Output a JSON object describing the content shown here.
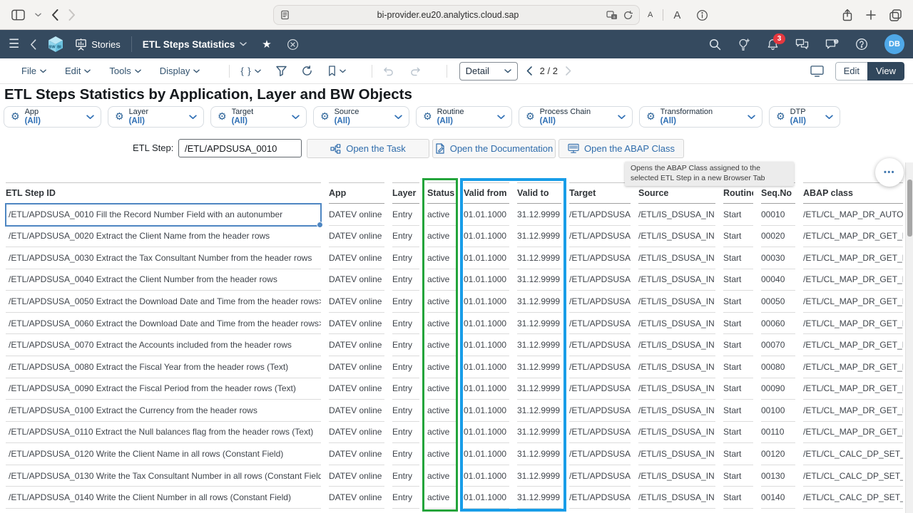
{
  "browser": {
    "url": "bi-provider.eu20.analytics.cloud.sap",
    "text_size_small": "A",
    "text_size_large": "A"
  },
  "icons": {
    "hamburger": "☰",
    "favorite_star": "★",
    "gear": "⚙",
    "widget_menu": "•••"
  },
  "shell": {
    "stories_label": "Stories",
    "story_title": "ETL Steps Statistics",
    "notification_count": "3",
    "avatar_initials": "DB"
  },
  "toolbar": {
    "menus": [
      "File",
      "Edit",
      "Tools",
      "Display"
    ],
    "script_glyph": "{ }",
    "view_mode_selected": "Detail",
    "page_indicator": "2 / 2",
    "edit_label": "Edit",
    "view_label": "View"
  },
  "page": {
    "title": "ETL Steps Statistics by Application, Layer and BW Objects"
  },
  "filters": [
    {
      "label": "App",
      "value": "(All)"
    },
    {
      "label": "Layer",
      "value": "(All)"
    },
    {
      "label": "Target",
      "value": "(All)"
    },
    {
      "label": "Source",
      "value": "(All)"
    },
    {
      "label": "Routine",
      "value": "(All)"
    },
    {
      "label": "Process Chain",
      "value": "(All)"
    },
    {
      "label": "Transformation",
      "value": "(All)"
    },
    {
      "label": "DTP",
      "value": "(All)"
    }
  ],
  "etl_step": {
    "label": "ETL Step:",
    "value": "/ETL/APDSUSA_0010",
    "buttons": [
      {
        "label": "Open the Task",
        "icon": "process-chain-icon"
      },
      {
        "label": "Open the Documentation",
        "icon": "document-icon"
      },
      {
        "label": "Open the ABAP Class",
        "icon": "terminal-icon"
      }
    ]
  },
  "tooltip": {
    "text": "Opens the ABAP Class assigned to the selected ETL Step in a new Browser Tab"
  },
  "highlights": {
    "status_box_color": "#23a43b",
    "validity_box_color": "#189de8"
  },
  "colors": {
    "shell_bg": "#354a5f",
    "accent_blue": "#2d6eb4",
    "selection_blue": "#4e86c2",
    "avatar_bg": "#4fa8e8",
    "badge_red": "#e5383f"
  },
  "table": {
    "columns": [
      "ETL Step ID",
      "App",
      "Layer",
      "Status",
      "Valid from",
      "Valid to",
      "Target",
      "Source",
      "Routine",
      "Seq.No",
      "ABAP class"
    ],
    "rows": [
      [
        "/ETL/APDSUSA_0010 Fill the Record Number Field with an autonumber",
        "DATEV online",
        "Entry",
        "active",
        "01.01.1000",
        "31.12.9999",
        "/ETL/APDSUSA",
        "/ETL/IS_DSUSA_IN",
        "Start",
        "00010",
        "/ETL/CL_MAP_DR_AUTONU"
      ],
      [
        "/ETL/APDSUSA_0020 Extract the Client Name from the header rows",
        "DATEV online",
        "Entry",
        "active",
        "01.01.1000",
        "31.12.9999",
        "/ETL/APDSUSA",
        "/ETL/IS_DSUSA_IN",
        "Start",
        "00020",
        "/ETL/CL_MAP_DR_GET_FIEL"
      ],
      [
        "/ETL/APDSUSA_0030 Extract the Tax Consultant Number from the header rows",
        "DATEV online",
        "Entry",
        "active",
        "01.01.1000",
        "31.12.9999",
        "/ETL/APDSUSA",
        "/ETL/IS_DSUSA_IN",
        "Start",
        "00030",
        "/ETL/CL_MAP_DR_GET_FIEL"
      ],
      [
        "/ETL/APDSUSA_0040 Extract the Client Number from the header rows",
        "DATEV online",
        "Entry",
        "active",
        "01.01.1000",
        "31.12.9999",
        "/ETL/APDSUSA",
        "/ETL/IS_DSUSA_IN",
        "Start",
        "00040",
        "/ETL/CL_MAP_DR_GET_FIEL"
      ],
      [
        "/ETL/APDSUSA_0050 Extract the Download Date and Time from the header rows>Date",
        "DATEV online",
        "Entry",
        "active",
        "01.01.1000",
        "31.12.9999",
        "/ETL/APDSUSA",
        "/ETL/IS_DSUSA_IN",
        "Start",
        "00050",
        "/ETL/CL_MAP_DR_GET_FIEL"
      ],
      [
        "/ETL/APDSUSA_0060 Extract the Download Date and Time from the header rows>Time",
        "DATEV online",
        "Entry",
        "active",
        "01.01.1000",
        "31.12.9999",
        "/ETL/APDSUSA",
        "/ETL/IS_DSUSA_IN",
        "Start",
        "00060",
        "/ETL/CL_MAP_DR_GET_FIEL"
      ],
      [
        "/ETL/APDSUSA_0070 Extract the Accounts included from the header rows",
        "DATEV online",
        "Entry",
        "active",
        "01.01.1000",
        "31.12.9999",
        "/ETL/APDSUSA",
        "/ETL/IS_DSUSA_IN",
        "Start",
        "00070",
        "/ETL/CL_MAP_DR_GET_FIEL"
      ],
      [
        "/ETL/APDSUSA_0080 Extract the Fiscal Year from the header rows (Text)",
        "DATEV online",
        "Entry",
        "active",
        "01.01.1000",
        "31.12.9999",
        "/ETL/APDSUSA",
        "/ETL/IS_DSUSA_IN",
        "Start",
        "00080",
        "/ETL/CL_MAP_DR_GET_FIEL"
      ],
      [
        "/ETL/APDSUSA_0090 Extract the Fiscal Period from the header rows (Text)",
        "DATEV online",
        "Entry",
        "active",
        "01.01.1000",
        "31.12.9999",
        "/ETL/APDSUSA",
        "/ETL/IS_DSUSA_IN",
        "Start",
        "00090",
        "/ETL/CL_MAP_DR_GET_FIEL"
      ],
      [
        "/ETL/APDSUSA_0100 Extract the Currency from the header rows",
        "DATEV online",
        "Entry",
        "active",
        "01.01.1000",
        "31.12.9999",
        "/ETL/APDSUSA",
        "/ETL/IS_DSUSA_IN",
        "Start",
        "00100",
        "/ETL/CL_MAP_DR_GET_FIEL"
      ],
      [
        "/ETL/APDSUSA_0110 Extract the Null balances flag from the header rows (Text)",
        "DATEV online",
        "Entry",
        "active",
        "01.01.1000",
        "31.12.9999",
        "/ETL/APDSUSA",
        "/ETL/IS_DSUSA_IN",
        "Start",
        "00110",
        "/ETL/CL_MAP_DR_GET_FIEL"
      ],
      [
        "/ETL/APDSUSA_0120 Write the Client Name in all rows (Constant Field)",
        "DATEV online",
        "Entry",
        "active",
        "01.01.1000",
        "31.12.9999",
        "/ETL/APDSUSA",
        "/ETL/IS_DSUSA_IN",
        "Start",
        "00120",
        "/ETL/CL_CALC_DP_SET_FIR"
      ],
      [
        "/ETL/APDSUSA_0130 Write the Tax Consultant Number in all rows (Constant Field)",
        "DATEV online",
        "Entry",
        "active",
        "01.01.1000",
        "31.12.9999",
        "/ETL/APDSUSA",
        "/ETL/IS_DSUSA_IN",
        "Start",
        "00130",
        "/ETL/CL_CALC_DP_SET_FIR"
      ],
      [
        "/ETL/APDSUSA_0140 Write the Client Number in all rows (Constant Field)",
        "DATEV online",
        "Entry",
        "active",
        "01.01.1000",
        "31.12.9999",
        "/ETL/APDSUSA",
        "/ETL/IS_DSUSA_IN",
        "Start",
        "00140",
        "/ETL/CL_CALC_DP_SET_FIR"
      ]
    ]
  }
}
